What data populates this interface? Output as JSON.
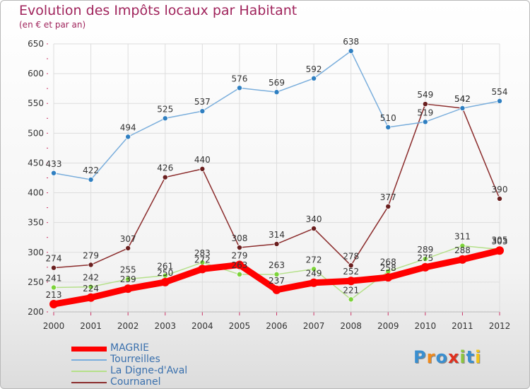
{
  "title": "Evolution des Impôts locaux par Habitant",
  "subtitle": "(en € et par an)",
  "logo_text": "Proxiti",
  "colors": {
    "title": "#a0245c",
    "grid": "#dddddd",
    "axis_text": "#333333",
    "legend_text": "#3a70ad"
  },
  "chart_data": {
    "type": "line",
    "x": [
      "2000",
      "2001",
      "2002",
      "2003",
      "2004",
      "2005",
      "2006",
      "2007",
      "2008",
      "2009",
      "2010",
      "2011",
      "2012"
    ],
    "ylim": [
      200,
      650
    ],
    "yticks": [
      200,
      250,
      300,
      350,
      400,
      450,
      500,
      550,
      600,
      650
    ],
    "grid": true,
    "legend_position": "bottom-left",
    "series": [
      {
        "name": "MAGRIE",
        "color": "#ff0000",
        "marker_color": "#ff0000",
        "label_color": "#333333",
        "values": [
          213,
          224,
          239,
          250,
          272,
          279,
          237,
          249,
          252,
          258,
          275,
          288,
          303
        ]
      },
      {
        "name": "Tourreilles",
        "color": "#7aaedc",
        "marker_color": "#2f7fc1",
        "label_color": "#333333",
        "values": [
          433,
          422,
          494,
          525,
          537,
          576,
          569,
          592,
          638,
          510,
          519,
          542,
          554
        ]
      },
      {
        "name": "La Digne-d'Aval",
        "color": "#b5e08a",
        "marker_color": "#7cd33a",
        "label_color": "#333333",
        "values": [
          241,
          242,
          255,
          261,
          283,
          263,
          263,
          272,
          221,
          268,
          289,
          311,
          305
        ]
      },
      {
        "name": "Cournanel",
        "color": "#8b2c2c",
        "marker_color": "#6a1f1f",
        "label_color": "#333333",
        "values": [
          274,
          279,
          307,
          426,
          440,
          308,
          314,
          340,
          278,
          377,
          549,
          542,
          390
        ]
      }
    ]
  }
}
